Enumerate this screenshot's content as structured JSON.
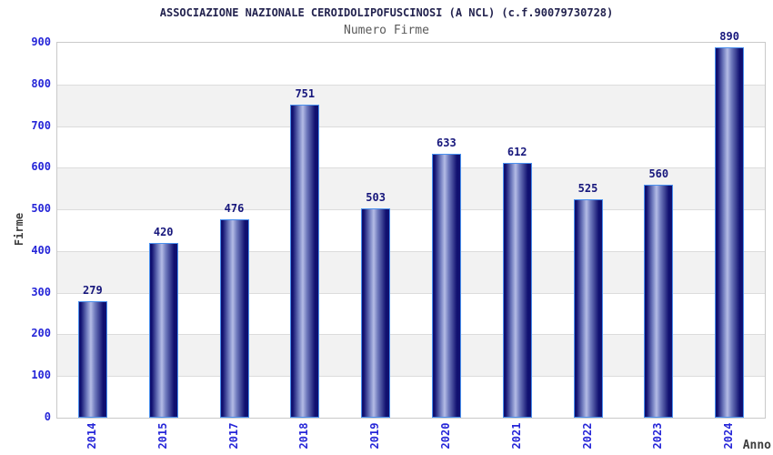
{
  "title": "ASSOCIAZIONE NAZIONALE CEROIDOLIPOFUSCINOSI (A NCL) (c.f.90079730728)",
  "subtitle": "Numero Firme",
  "chart_data": {
    "type": "bar",
    "categories": [
      "2014",
      "2015",
      "2017",
      "2018",
      "2019",
      "2020",
      "2021",
      "2022",
      "2023",
      "2024"
    ],
    "values": [
      279,
      420,
      476,
      751,
      503,
      633,
      612,
      525,
      560,
      890
    ],
    "title": "ASSOCIAZIONE NAZIONALE CEROIDOLIPOFUSCINOSI (A NCL) (c.f.90079730728)",
    "subtitle": "Numero Firme",
    "xlabel": "Anno",
    "ylabel": "Firme",
    "ylim": [
      0,
      900
    ],
    "ytick_step": 100,
    "grid": true,
    "legend": false,
    "band_shading": true
  },
  "colors": {
    "title": "#23234f",
    "subtitle": "#5a5a5a",
    "tick_label": "#2626d8",
    "value_label": "#17177c",
    "axis_title": "#3d3d3d",
    "bar_dark": "#101070",
    "bar_mid": "#6f7abd",
    "bar_light": "#b4bce6",
    "bar_border": "#4a90ee",
    "band_white": "#ffffff",
    "band_gray": "#f2f2f2",
    "grid_line": "#dcdcdc",
    "plot_border": "#c9c9c9"
  }
}
